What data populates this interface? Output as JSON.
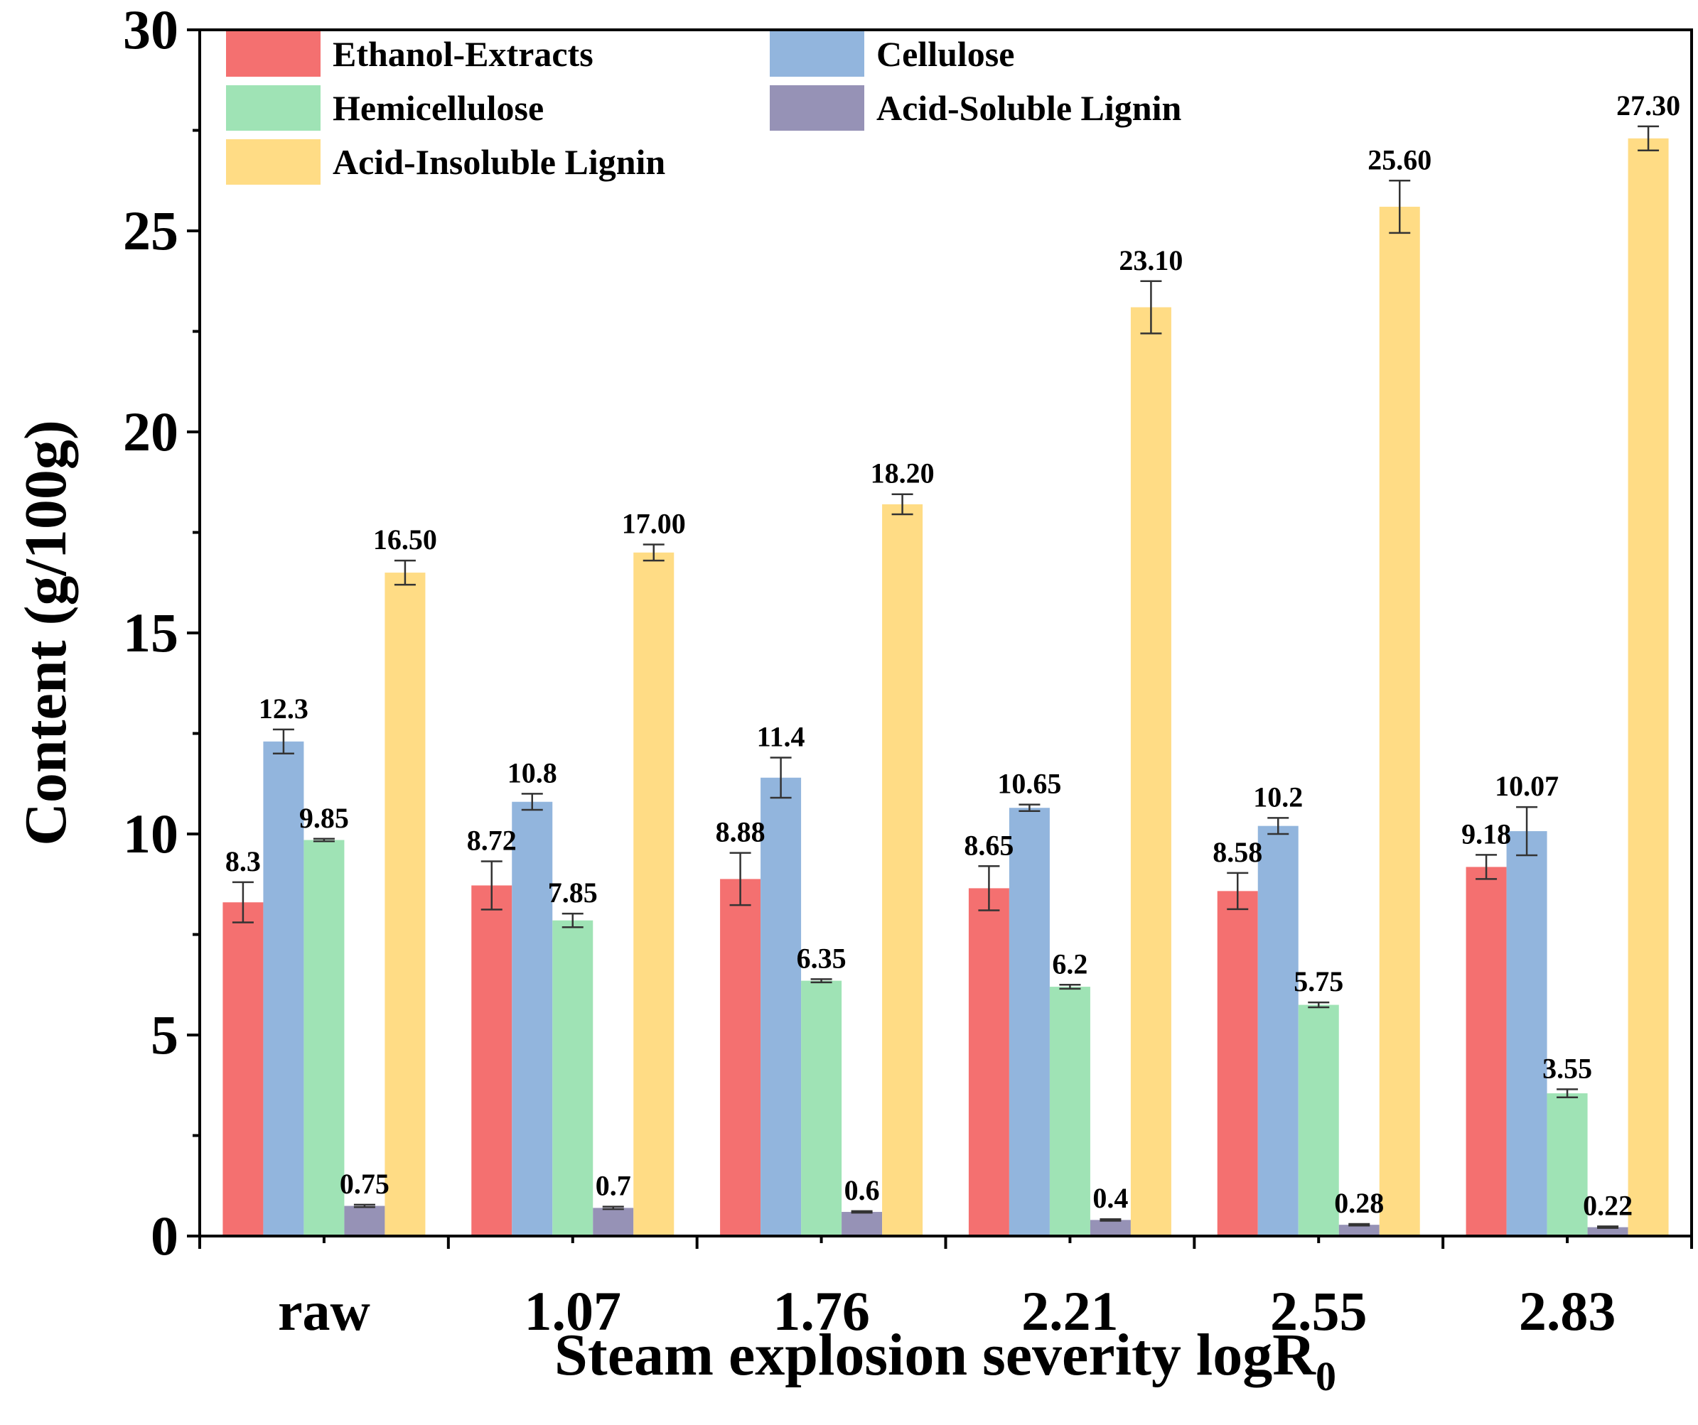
{
  "chart_data": {
    "type": "bar",
    "title": "",
    "xlabel": "Steam explosion severity logR",
    "xlabel_subscript": "0",
    "ylabel": "Content (g/100g)",
    "ylim": [
      0,
      30
    ],
    "yticks": [
      "0",
      "5",
      "10",
      "15",
      "20",
      "25",
      "30"
    ],
    "grid": false,
    "legend_position": "top-left",
    "categories": [
      "raw",
      "1.07",
      "1.76",
      "2.21",
      "2.55",
      "2.83"
    ],
    "series": [
      {
        "name": "Ethanol-Extracts",
        "color": "#f47070",
        "values": [
          8.3,
          8.72,
          8.88,
          8.65,
          8.58,
          9.18
        ],
        "labels": [
          "8.3",
          "8.72",
          "8.88",
          "8.65",
          "8.58",
          "9.18"
        ],
        "errors": [
          0.5,
          0.6,
          0.65,
          0.55,
          0.45,
          0.3
        ]
      },
      {
        "name": "Cellulose",
        "color": "#92b5dd",
        "values": [
          12.3,
          10.8,
          11.4,
          10.65,
          10.2,
          10.07
        ],
        "labels": [
          "12.3",
          "10.8",
          "11.4",
          "10.65",
          "10.2",
          "10.07"
        ],
        "errors": [
          0.3,
          0.2,
          0.5,
          0.08,
          0.2,
          0.6
        ]
      },
      {
        "name": "Hemicellulose",
        "color": "#9fe3b5",
        "values": [
          9.85,
          7.85,
          6.35,
          6.2,
          5.75,
          3.55
        ],
        "labels": [
          "9.85",
          "7.85",
          "6.35",
          "6.2",
          "5.75",
          "3.55"
        ],
        "errors": [
          0.03,
          0.17,
          0.04,
          0.05,
          0.06,
          0.1
        ]
      },
      {
        "name": "Acid-Soluble Lignin",
        "color": "#9692b6",
        "values": [
          0.75,
          0.7,
          0.6,
          0.4,
          0.28,
          0.22
        ],
        "labels": [
          "0.75",
          "0.7",
          "0.6",
          "0.4",
          "0.28",
          "0.22"
        ],
        "errors": [
          0.03,
          0.03,
          0.02,
          0.02,
          0.02,
          0.02
        ]
      },
      {
        "name": "Acid-Insoluble Lignin",
        "color": "#ffdc85",
        "values": [
          16.5,
          17.0,
          18.2,
          23.1,
          25.6,
          27.3
        ],
        "labels": [
          "16.50",
          "17.00",
          "18.20",
          "23.10",
          "25.60",
          "27.30"
        ],
        "errors": [
          0.3,
          0.2,
          0.25,
          0.65,
          0.65,
          0.3
        ]
      }
    ]
  }
}
